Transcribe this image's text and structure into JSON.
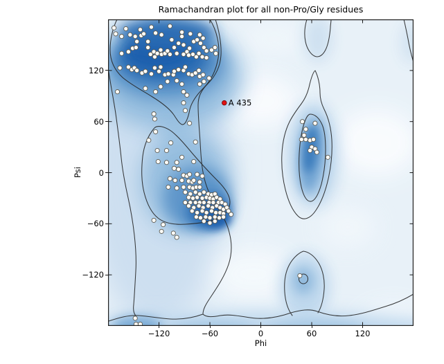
{
  "title": "Ramachandran plot for all non-Pro/Gly residues",
  "axes": {
    "xlabel": "Phi",
    "ylabel": "Psi"
  },
  "colors": {
    "density_core": "#1a5ead",
    "density_mid": "#5e96ca",
    "density_light": "#bdd7ed",
    "plot_background": "#e8f1f8",
    "contour_line": "#252525",
    "point_fill": "#fdfdf8",
    "point_edge": "#5d5a52",
    "outlier_red": "#e01212"
  },
  "chart_data": {
    "type": "scatter",
    "title": "Ramachandran plot for all non-Pro/Gly residues",
    "xlabel": "Phi",
    "ylabel": "Psi",
    "xlim": [
      -180,
      180
    ],
    "ylim": [
      -180,
      180
    ],
    "xticks": [
      -120,
      -60,
      0,
      60,
      120
    ],
    "yticks": [
      -120,
      -60,
      0,
      60,
      120
    ],
    "grid": false,
    "legend": "none",
    "annotations": [
      {
        "text": "A 435",
        "x": -43,
        "y": 82
      }
    ],
    "series": [
      {
        "name": "non-Pro/Gly residues",
        "marker": "circle",
        "fill": "#fdfdf8",
        "stroke": "#5d5a52",
        "radius": 3.1,
        "points": [
          [
            -173,
            170
          ],
          [
            -159,
            169
          ],
          [
            -142,
            168
          ],
          [
            -129,
            171
          ],
          [
            -107,
            172
          ],
          [
            -93,
            165
          ],
          [
            -93,
            160
          ],
          [
            -83,
            163
          ],
          [
            -72,
            162
          ],
          [
            -68,
            158
          ],
          [
            -171,
            163
          ],
          [
            -164,
            160
          ],
          [
            -154,
            162
          ],
          [
            -148,
            160
          ],
          [
            -146,
            154
          ],
          [
            -141,
            161
          ],
          [
            -138,
            163
          ],
          [
            -133,
            154
          ],
          [
            -124,
            164
          ],
          [
            -117,
            162
          ],
          [
            -105,
            156
          ],
          [
            -97,
            152
          ],
          [
            -91,
            150
          ],
          [
            -84,
            146
          ],
          [
            -79,
            154
          ],
          [
            -75,
            156
          ],
          [
            -71,
            152
          ],
          [
            -67,
            147
          ],
          [
            -64,
            143
          ],
          [
            -58,
            144
          ],
          [
            -54,
            147
          ],
          [
            -53,
            140
          ],
          [
            -164,
            140
          ],
          [
            -156,
            142
          ],
          [
            -151,
            146
          ],
          [
            -147,
            147
          ],
          [
            -133,
            147
          ],
          [
            -130,
            139
          ],
          [
            -126,
            142
          ],
          [
            -125,
            136
          ],
          [
            -122,
            140
          ],
          [
            -118,
            144
          ],
          [
            -117,
            139
          ],
          [
            -113,
            140
          ],
          [
            -110,
            143
          ],
          [
            -107,
            139
          ],
          [
            -102,
            147
          ],
          [
            -99,
            140
          ],
          [
            -91,
            139
          ],
          [
            -87,
            142
          ],
          [
            -85,
            138
          ],
          [
            -80,
            139
          ],
          [
            -76,
            136
          ],
          [
            -73,
            140
          ],
          [
            -69,
            136
          ],
          [
            -64,
            135
          ],
          [
            -166,
            123
          ],
          [
            -156,
            124
          ],
          [
            -152,
            121
          ],
          [
            -149,
            123
          ],
          [
            -146,
            120
          ],
          [
            -140,
            117
          ],
          [
            -136,
            119
          ],
          [
            -129,
            116
          ],
          [
            -125,
            123
          ],
          [
            -118,
            124
          ],
          [
            -120,
            119
          ],
          [
            -113,
            115
          ],
          [
            -109,
            116
          ],
          [
            -103,
            115
          ],
          [
            -102,
            119
          ],
          [
            -97,
            121
          ],
          [
            -91,
            120
          ],
          [
            -89,
            124
          ],
          [
            -85,
            116
          ],
          [
            -81,
            115
          ],
          [
            -77,
            117
          ],
          [
            -73,
            120
          ],
          [
            -72,
            113
          ],
          [
            -68,
            115
          ],
          [
            -99,
            108
          ],
          [
            -93,
            104
          ],
          [
            -110,
            107
          ],
          [
            -118,
            101
          ],
          [
            -124,
            95
          ],
          [
            -136,
            99
          ],
          [
            -91,
            95
          ],
          [
            -87,
            91
          ],
          [
            -169,
            95
          ],
          [
            -72,
            104
          ],
          [
            -67,
            107
          ],
          [
            -61,
            111
          ],
          [
            -91,
            82
          ],
          [
            -126,
            69
          ],
          [
            -125,
            63
          ],
          [
            -89,
            73
          ],
          [
            -84,
            58
          ],
          [
            -124,
            48
          ],
          [
            -132,
            38
          ],
          [
            -106,
            35
          ],
          [
            -77,
            36
          ],
          [
            -122,
            26
          ],
          [
            -111,
            26
          ],
          [
            -121,
            13
          ],
          [
            -111,
            12
          ],
          [
            -99,
            12
          ],
          [
            -93,
            18
          ],
          [
            -79,
            13
          ],
          [
            -102,
            5
          ],
          [
            -97,
            4
          ],
          [
            -91,
            -3
          ],
          [
            -87,
            -4
          ],
          [
            -84,
            -2
          ],
          [
            -107,
            -7
          ],
          [
            -101,
            -9
          ],
          [
            -93,
            -9
          ],
          [
            -85,
            -10
          ],
          [
            -81,
            -11
          ],
          [
            -79,
            -9
          ],
          [
            -75,
            -2
          ],
          [
            -72,
            -11
          ],
          [
            -109,
            -17
          ],
          [
            -99,
            -18
          ],
          [
            -91,
            -17
          ],
          [
            -84,
            -17
          ],
          [
            -80,
            -18
          ],
          [
            -76,
            -17
          ],
          [
            -72,
            -17
          ],
          [
            -69,
            -4
          ],
          [
            -89,
            -23
          ],
          [
            -83,
            -25
          ],
          [
            -77,
            -23
          ],
          [
            -72,
            -25
          ],
          [
            -67,
            -23
          ],
          [
            -62,
            -25
          ],
          [
            -58,
            -26
          ],
          [
            -54,
            -25
          ],
          [
            -85,
            -29
          ],
          [
            -80,
            -30
          ],
          [
            -75,
            -29
          ],
          [
            -69,
            -30
          ],
          [
            -64,
            -29
          ],
          [
            -60,
            -30
          ],
          [
            -56,
            -31
          ],
          [
            -52,
            -29
          ],
          [
            -48,
            -31
          ],
          [
            -89,
            -35
          ],
          [
            -83,
            -35
          ],
          [
            -77,
            -35
          ],
          [
            -72,
            -35
          ],
          [
            -67,
            -35
          ],
          [
            -61,
            -35
          ],
          [
            -56,
            -35
          ],
          [
            -50,
            -35
          ],
          [
            -46,
            -35
          ],
          [
            -42,
            -37
          ],
          [
            -85,
            -39
          ],
          [
            -79,
            -41
          ],
          [
            -73,
            -39
          ],
          [
            -68,
            -41
          ],
          [
            -62,
            -39
          ],
          [
            -57,
            -41
          ],
          [
            -52,
            -39
          ],
          [
            -48,
            -41
          ],
          [
            -44,
            -43
          ],
          [
            -40,
            -41
          ],
          [
            -81,
            -45
          ],
          [
            -75,
            -47
          ],
          [
            -69,
            -45
          ],
          [
            -64,
            -47
          ],
          [
            -58,
            -45
          ],
          [
            -53,
            -47
          ],
          [
            -48,
            -47
          ],
          [
            -44,
            -48
          ],
          [
            -76,
            -52
          ],
          [
            -71,
            -53
          ],
          [
            -65,
            -52
          ],
          [
            -60,
            -53
          ],
          [
            -54,
            -52
          ],
          [
            -49,
            -53
          ],
          [
            -44,
            -52
          ],
          [
            -67,
            -57
          ],
          [
            -60,
            -59
          ],
          [
            -54,
            -57
          ],
          [
            -38,
            -45
          ],
          [
            -35,
            -49
          ],
          [
            -126,
            -56
          ],
          [
            -115,
            -61
          ],
          [
            -117,
            -69
          ],
          [
            -103,
            -71
          ],
          [
            -99,
            -76
          ],
          [
            49,
            60
          ],
          [
            64,
            58
          ],
          [
            53,
            51
          ],
          [
            51,
            44
          ],
          [
            48,
            39
          ],
          [
            53,
            39
          ],
          [
            58,
            38
          ],
          [
            62,
            39
          ],
          [
            60,
            30
          ],
          [
            64,
            28
          ],
          [
            58,
            26
          ],
          [
            66,
            24
          ],
          [
            79,
            18
          ],
          [
            46,
            -121
          ],
          [
            -148,
            -171
          ],
          [
            -147,
            -178
          ],
          [
            -142,
            -178
          ]
        ]
      },
      {
        "name": "outlier A 435",
        "marker": "circle",
        "fill": "#e01212",
        "stroke": "#7a0a0a",
        "radius": 3.3,
        "points": [
          [
            -43,
            82
          ]
        ]
      }
    ]
  }
}
